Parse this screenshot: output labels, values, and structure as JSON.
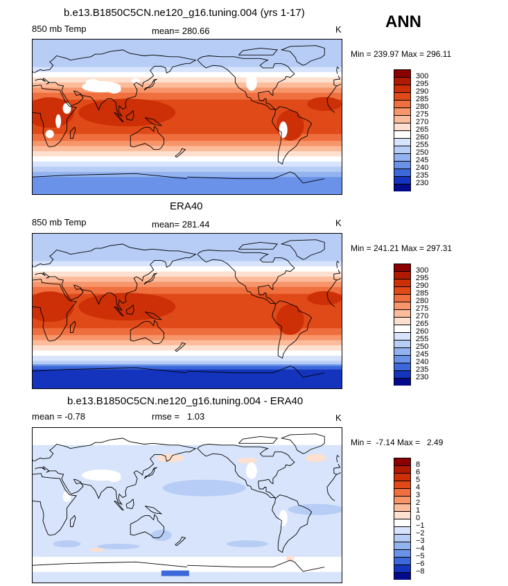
{
  "season": "ANN",
  "panels": [
    {
      "title": "b.e13.B1850C5CN.ne120_g16.tuning.004 (yrs 1-17)",
      "left_label": "850 mb Temp",
      "center_label": "mean= 280.66",
      "units": "K",
      "minmax": "Min = 239.97 Max = 296.11",
      "colorbar": {
        "labels": [
          "300",
          "295",
          "290",
          "285",
          "280",
          "275",
          "270",
          "265",
          "260",
          "255",
          "250",
          "245",
          "240",
          "235",
          "230"
        ],
        "colors": [
          "#8b0000",
          "#b01a00",
          "#cd2f06",
          "#e04a18",
          "#ef6f3f",
          "#f7956b",
          "#fcbc9b",
          "#fde0cf",
          "#ffffff",
          "#d7e4fb",
          "#b7cdf6",
          "#93b3f0",
          "#6a92e8",
          "#3d68da",
          "#1434bd",
          "#030a8c"
        ]
      },
      "map_kind": "temp_model"
    },
    {
      "title": "ERA40",
      "left_label": "850 mb Temp",
      "center_label": "mean= 281.44",
      "units": "K",
      "minmax": "Min = 241.21 Max = 297.31",
      "colorbar": {
        "labels": [
          "300",
          "295",
          "290",
          "285",
          "280",
          "275",
          "270",
          "265",
          "260",
          "255",
          "250",
          "245",
          "240",
          "235",
          "230"
        ],
        "colors": [
          "#8b0000",
          "#b01a00",
          "#cd2f06",
          "#e04a18",
          "#ef6f3f",
          "#f7956b",
          "#fcbc9b",
          "#fde0cf",
          "#ffffff",
          "#d7e4fb",
          "#b7cdf6",
          "#93b3f0",
          "#6a92e8",
          "#3d68da",
          "#1434bd",
          "#030a8c"
        ]
      },
      "map_kind": "temp_obs"
    },
    {
      "title": "b.e13.B1850C5CN.ne120_g16.tuning.004 - ERA40",
      "left_label": "mean =   -0.78",
      "center_label": "rmse =   1.03",
      "units": "K",
      "minmax": "Min =  -7.14 Max =   2.49",
      "colorbar": {
        "labels": [
          "8",
          "6",
          "5",
          "4",
          "3",
          "2",
          "1",
          "0",
          "−1",
          "−2",
          "−3",
          "−4",
          "−5",
          "−6",
          "−8"
        ],
        "colors": [
          "#8b0000",
          "#b01a00",
          "#cd2f06",
          "#e04a18",
          "#ef6f3f",
          "#f7956b",
          "#fcbc9b",
          "#fde0cf",
          "#ffffff",
          "#d7e4fb",
          "#b7cdf6",
          "#93b3f0",
          "#6a92e8",
          "#3d68da",
          "#1434bd",
          "#030a8c"
        ]
      },
      "map_kind": "diff"
    }
  ]
}
